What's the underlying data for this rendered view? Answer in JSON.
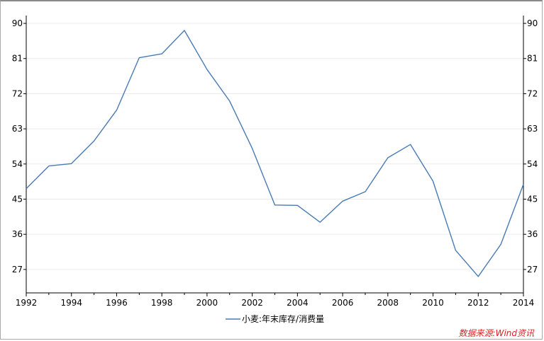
{
  "chart_data": {
    "type": "line",
    "title": "",
    "xlabel": "",
    "ylabel": "",
    "x": [
      1992,
      1993,
      1994,
      1995,
      1996,
      1997,
      1998,
      1999,
      2000,
      2001,
      2002,
      2003,
      2004,
      2005,
      2006,
      2007,
      2008,
      2009,
      2010,
      2011,
      2012,
      2013,
      2014
    ],
    "series": [
      {
        "name": "小麦:年末库存/消费量",
        "color": "#4a7ab5",
        "values": [
          47.7,
          53.5,
          54.1,
          59.9,
          67.8,
          81.2,
          82.2,
          88.2,
          78.2,
          70.1,
          58.0,
          43.5,
          43.4,
          39.1,
          44.5,
          46.9,
          55.6,
          59.0,
          49.6,
          31.9,
          25.2,
          33.4,
          48.8
        ]
      }
    ],
    "ylim": [
      21,
      92
    ],
    "y_ticks": [
      27,
      36,
      45,
      54,
      63,
      72,
      81,
      90
    ],
    "x_ticks": [
      1992,
      1994,
      1996,
      1998,
      2000,
      2002,
      2004,
      2006,
      2008,
      2010,
      2012,
      2014
    ],
    "grid": true,
    "legend_position": "bottom",
    "dual_y_axis_mirror": true
  },
  "source_note": "数据来源:Wind资讯"
}
